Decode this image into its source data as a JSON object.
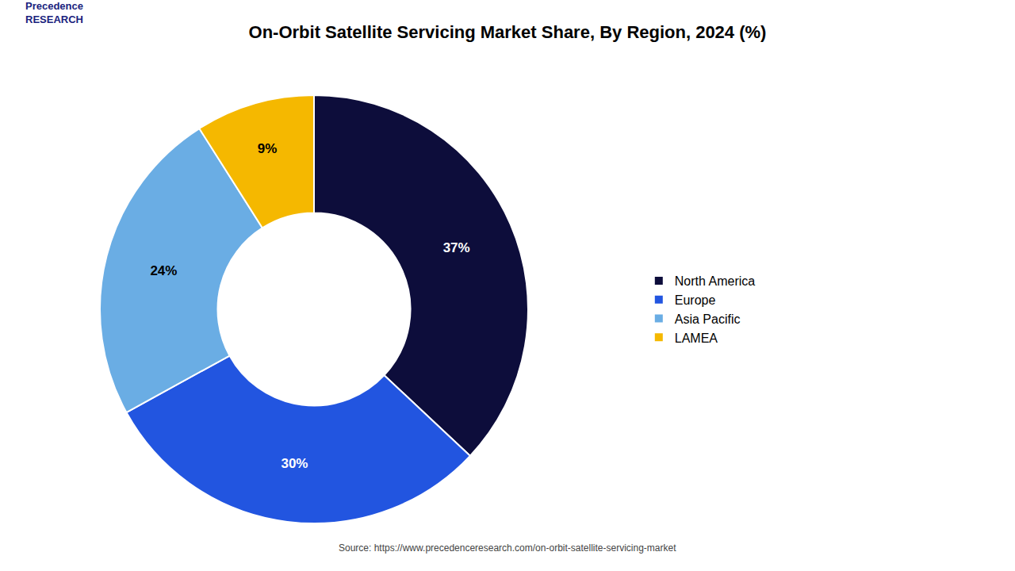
{
  "chart_data": {
    "type": "donut",
    "title": "On-Orbit Satellite Servicing Market Share, By Region, 2024 (%)",
    "categories": [
      "North America",
      "Europe",
      "Asia Pacific",
      "LAMEA"
    ],
    "values": [
      37,
      30,
      24,
      9
    ],
    "value_labels": [
      "37%",
      "30%",
      "24%",
      "9%"
    ],
    "colors": [
      "#0d0d3b",
      "#2255e0",
      "#6aade4",
      "#f5b800"
    ],
    "data_labels": true,
    "legend": "right",
    "annotations": [
      "Precedence\nRESEARCH",
      "Source: https://www.precedenceresearch.com/on-orbit-satellite-servicing-market"
    ]
  }
}
